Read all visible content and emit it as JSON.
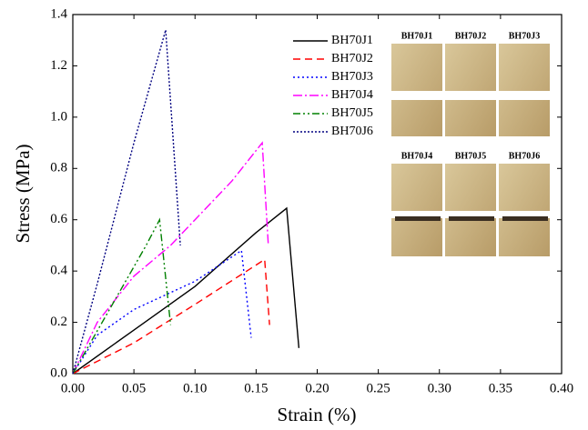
{
  "chart_data": {
    "type": "line",
    "xlabel": "Strain (%)",
    "ylabel": "Stress (MPa)",
    "xlim": [
      0,
      0.4
    ],
    "ylim": [
      0,
      1.4
    ],
    "xticks": [
      {
        "value": 0,
        "label": "0.00"
      },
      {
        "value": 0.05,
        "label": "0.05"
      },
      {
        "value": 0.1,
        "label": "0.10"
      },
      {
        "value": 0.15,
        "label": "0.15"
      },
      {
        "value": 0.2,
        "label": "0.20"
      },
      {
        "value": 0.25,
        "label": "0.25"
      },
      {
        "value": 0.3,
        "label": "0.30"
      },
      {
        "value": 0.35,
        "label": "0.35"
      },
      {
        "value": 0.4,
        "label": "0.40"
      }
    ],
    "yticks": [
      {
        "value": 0,
        "label": "0.0"
      },
      0.2,
      0.4,
      0.6,
      0.8,
      {
        "value": 1,
        "label": "1.0"
      },
      1.2,
      1.4
    ],
    "legend": "upper-center",
    "series": [
      {
        "name": "BH70J1",
        "color": "#000000",
        "dash": "none",
        "x": [
          0,
          0.05,
          0.1,
          0.15,
          0.175,
          0.185
        ],
        "values": [
          0,
          0.17,
          0.34,
          0.55,
          0.645,
          0.1
        ]
      },
      {
        "name": "BH70J2",
        "color": "#ff0000",
        "dash": "8,5",
        "x": [
          0,
          0.05,
          0.1,
          0.157,
          0.161
        ],
        "values": [
          0,
          0.12,
          0.27,
          0.445,
          0.19
        ]
      },
      {
        "name": "BH70J3",
        "color": "#0000ff",
        "dash": "2,3",
        "x": [
          0,
          0.02,
          0.05,
          0.1,
          0.138,
          0.146
        ],
        "values": [
          0,
          0.15,
          0.25,
          0.36,
          0.48,
          0.14
        ]
      },
      {
        "name": "BH70J4",
        "color": "#ff00ff",
        "dash": "10,3,2,3",
        "x": [
          0,
          0.02,
          0.05,
          0.08,
          0.1,
          0.13,
          0.155,
          0.16
        ],
        "values": [
          0,
          0.2,
          0.38,
          0.5,
          0.6,
          0.75,
          0.9,
          0.5
        ]
      },
      {
        "name": "BH70J5",
        "color": "#008000",
        "dash": "8,3,2,3,2,3",
        "x": [
          0,
          0.03,
          0.06,
          0.071,
          0.08
        ],
        "values": [
          0,
          0.25,
          0.5,
          0.6,
          0.19
        ]
      },
      {
        "name": "BH70J6",
        "color": "#000080",
        "dash": "2,2",
        "x": [
          0,
          0.02,
          0.05,
          0.076,
          0.088
        ],
        "values": [
          0,
          0.35,
          0.9,
          1.34,
          0.5
        ]
      }
    ],
    "inset_labels": [
      "BH70J1",
      "BH70J2",
      "BH70J3",
      "BH70J4",
      "BH70J5",
      "BH70J6"
    ]
  }
}
